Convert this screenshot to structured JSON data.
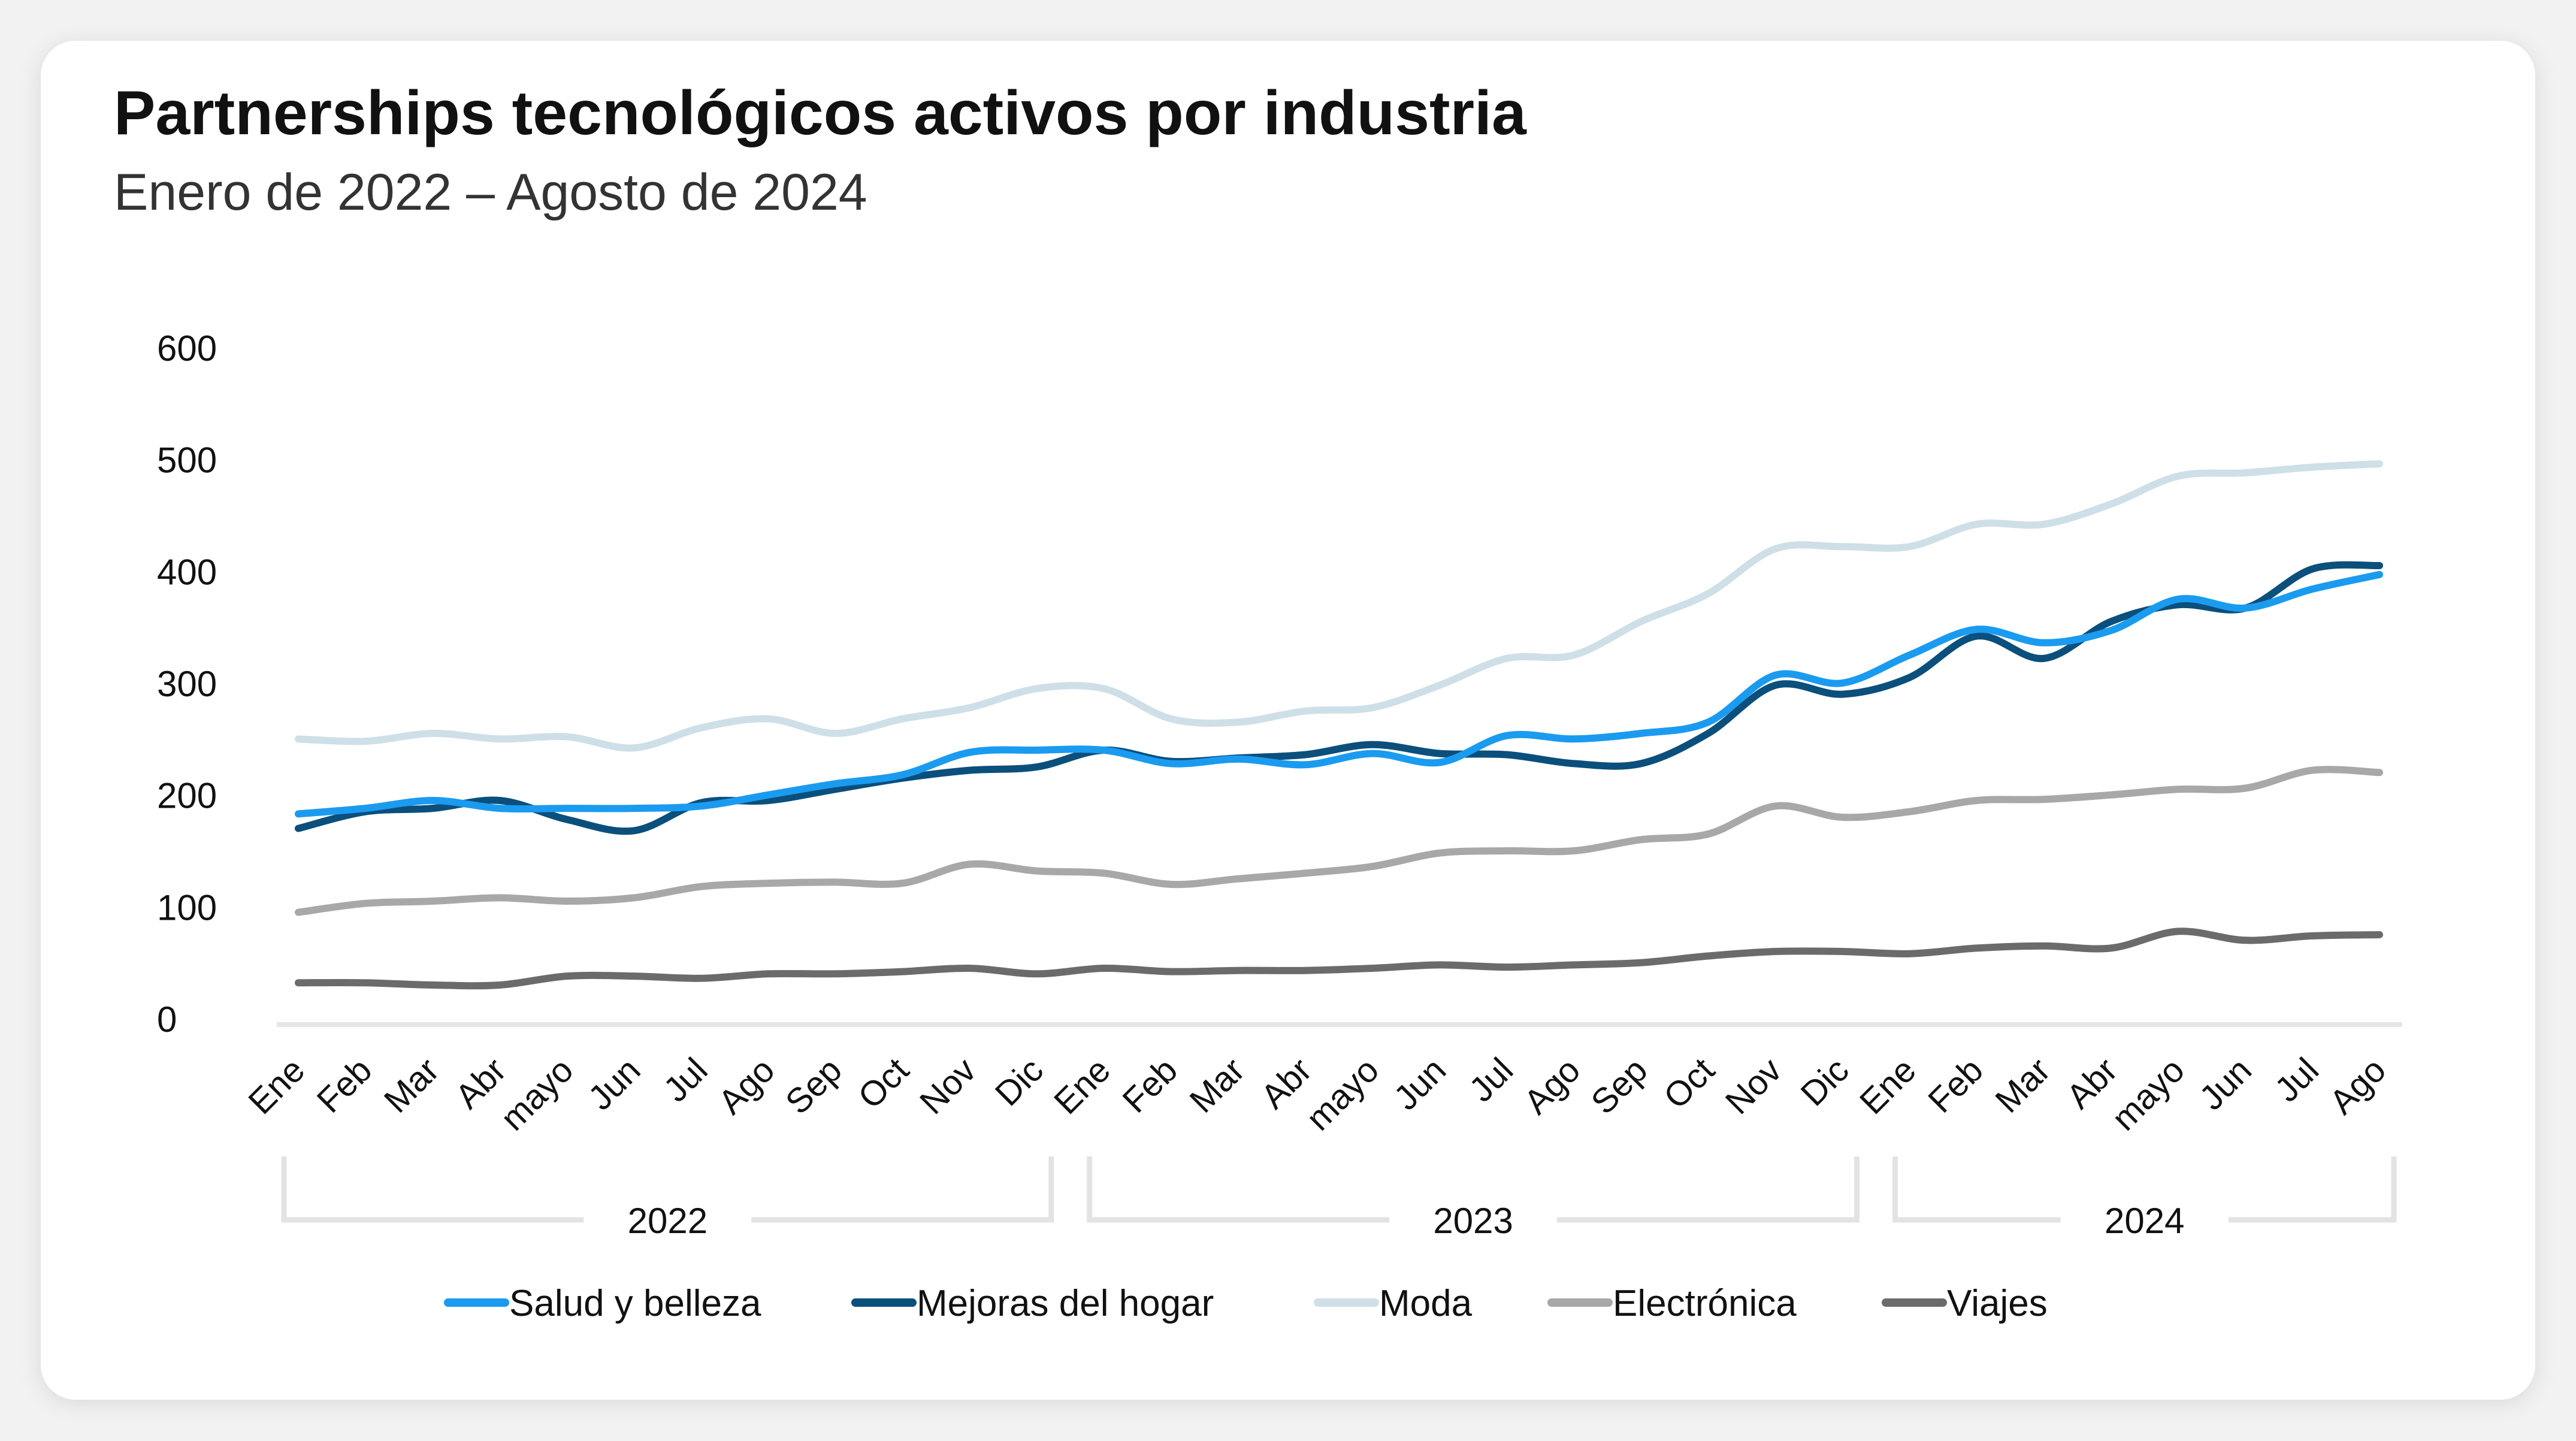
{
  "title": "Partnerships tecnológicos activos por industria",
  "subtitle": "Enero de 2022 – Agosto de 2024",
  "chart_data": {
    "type": "line",
    "title": "Partnerships tecnológicos activos por industria",
    "subtitle": "Enero de 2022 – Agosto de 2024",
    "xlabel": "",
    "ylabel": "",
    "ylim": [
      0,
      600
    ],
    "yticks": [
      0,
      100,
      200,
      300,
      400,
      500,
      600
    ],
    "grid": false,
    "legend": "bottom",
    "categories": [
      "Ene",
      "Feb",
      "Mar",
      "Abr",
      "mayo",
      "Jun",
      "Jul",
      "Ago",
      "Sep",
      "Oct",
      "Nov",
      "Dic",
      "Ene",
      "Feb",
      "Mar",
      "Abr",
      "mayo",
      "Jun",
      "Jul",
      "Ago",
      "Sep",
      "Oct",
      "Nov",
      "Dic",
      "Ene",
      "Feb",
      "Mar",
      "Abr",
      "mayo",
      "Jun",
      "Jul",
      "Ago"
    ],
    "year_groups": [
      {
        "label": "2022",
        "start": 0,
        "end": 11
      },
      {
        "label": "2023",
        "start": 12,
        "end": 23
      },
      {
        "label": "2024",
        "start": 24,
        "end": 31
      }
    ],
    "series": [
      {
        "name": "Viajes",
        "color": "#6b6b6b",
        "values": [
          32,
          32,
          30,
          30,
          38,
          38,
          36,
          40,
          40,
          42,
          45,
          40,
          45,
          42,
          43,
          43,
          45,
          48,
          46,
          48,
          50,
          56,
          60,
          60,
          58,
          63,
          65,
          63,
          78,
          70,
          74,
          75
        ]
      },
      {
        "name": "Electrónica",
        "color": "#a8a8a8",
        "values": [
          95,
          103,
          105,
          108,
          105,
          108,
          118,
          121,
          122,
          121,
          138,
          132,
          130,
          120,
          125,
          130,
          136,
          148,
          150,
          150,
          160,
          165,
          190,
          180,
          185,
          195,
          196,
          200,
          205,
          206,
          222,
          220
        ]
      },
      {
        "name": "Moda",
        "color": "#cfdfe8",
        "values": [
          250,
          248,
          255,
          250,
          252,
          242,
          260,
          268,
          255,
          268,
          278,
          295,
          295,
          268,
          265,
          275,
          278,
          298,
          322,
          325,
          355,
          380,
          420,
          422,
          422,
          442,
          442,
          460,
          485,
          488,
          493,
          496
        ]
      },
      {
        "name": "Mejoras del hogar",
        "color": "#0b4f7c",
        "values": [
          170,
          185,
          188,
          195,
          178,
          168,
          193,
          195,
          205,
          215,
          222,
          225,
          240,
          230,
          233,
          236,
          245,
          237,
          236,
          228,
          228,
          255,
          298,
          290,
          305,
          342,
          322,
          355,
          370,
          367,
          402,
          405
        ]
      },
      {
        "name": "Salud y belleza",
        "color": "#1a9bf0",
        "values": [
          183,
          188,
          195,
          188,
          188,
          188,
          190,
          200,
          210,
          218,
          238,
          240,
          240,
          228,
          232,
          227,
          237,
          229,
          253,
          250,
          255,
          265,
          307,
          300,
          325,
          348,
          336,
          347,
          375,
          367,
          384,
          397
        ]
      }
    ],
    "legend_order": [
      "Salud y belleza",
      "Mejoras del hogar",
      "Moda",
      "Electrónica",
      "Viajes"
    ]
  }
}
